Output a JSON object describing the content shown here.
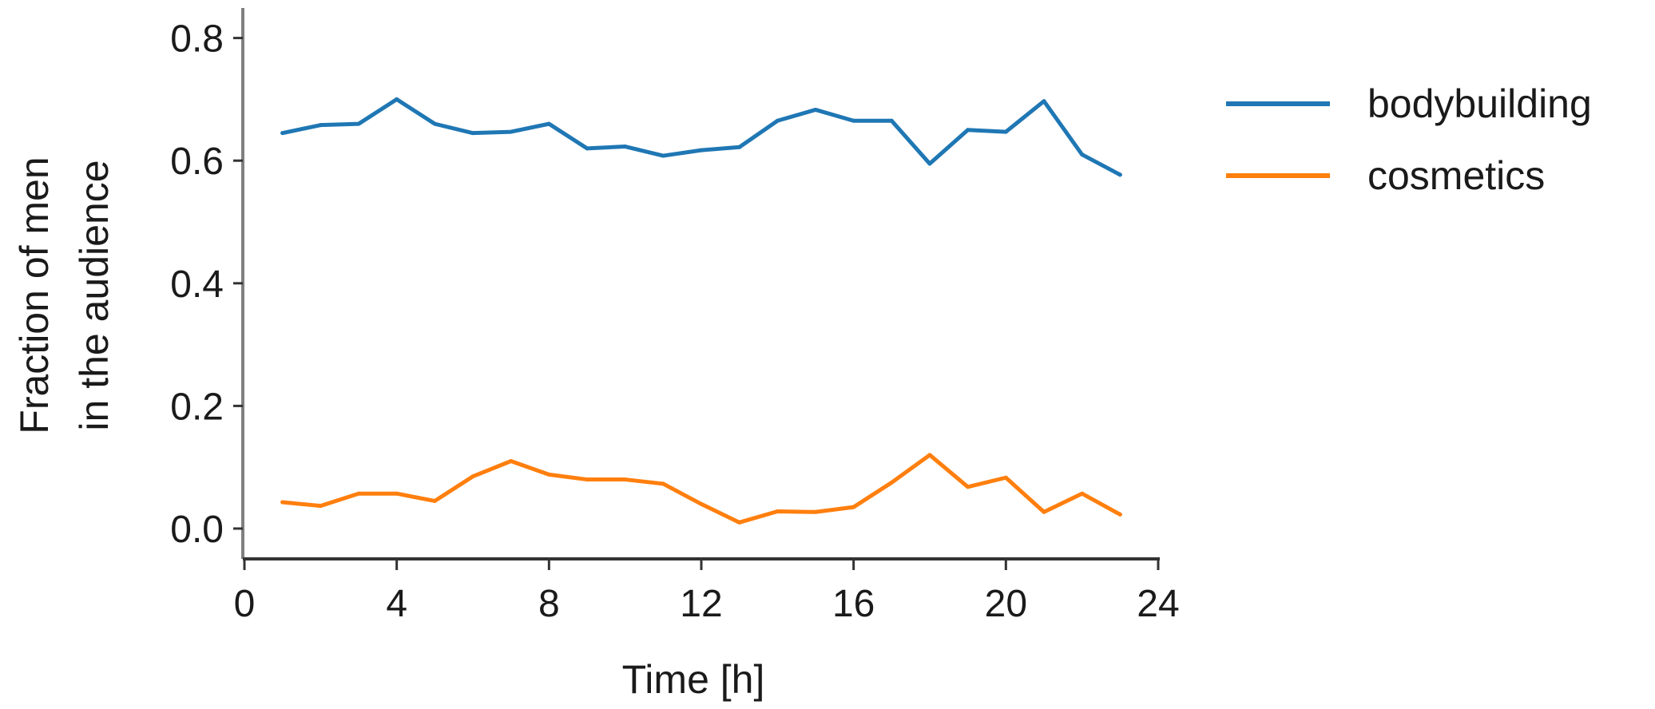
{
  "chart_data": {
    "type": "line",
    "title": "",
    "xlabel": "Time [h]",
    "ylabel_lines": [
      "Fraction of men",
      "in the audience"
    ],
    "xlim": [
      0,
      24
    ],
    "ylim": [
      -0.05,
      0.85
    ],
    "xticks": [
      0,
      4,
      8,
      12,
      16,
      20,
      24
    ],
    "yticks": [
      0.0,
      0.2,
      0.4,
      0.6,
      0.8
    ],
    "xtick_labels": [
      "0",
      "4",
      "8",
      "12",
      "16",
      "20",
      "24"
    ],
    "ytick_labels": [
      "0.0",
      "0.2",
      "0.4",
      "0.6",
      "0.8"
    ],
    "grid": false,
    "legend_position": "right",
    "x": [
      1,
      2,
      3,
      4,
      5,
      6,
      7,
      8,
      9,
      10,
      11,
      12,
      13,
      14,
      15,
      16,
      17,
      18,
      19,
      20,
      21,
      22,
      23
    ],
    "series": [
      {
        "name": "bodybuilding",
        "color": "#1f77b4",
        "values": [
          0.645,
          0.658,
          0.66,
          0.7,
          0.66,
          0.645,
          0.647,
          0.66,
          0.62,
          0.623,
          0.608,
          0.617,
          0.622,
          0.665,
          0.683,
          0.665,
          0.665,
          0.595,
          0.65,
          0.647,
          0.697,
          0.61,
          0.577
        ]
      },
      {
        "name": "cosmetics",
        "color": "#ff7f0e",
        "values": [
          0.043,
          0.037,
          0.057,
          0.057,
          0.045,
          0.085,
          0.11,
          0.088,
          0.08,
          0.08,
          0.073,
          0.04,
          0.01,
          0.028,
          0.027,
          0.035,
          0.075,
          0.12,
          0.068,
          0.083,
          0.027,
          0.057,
          0.023
        ]
      }
    ]
  }
}
